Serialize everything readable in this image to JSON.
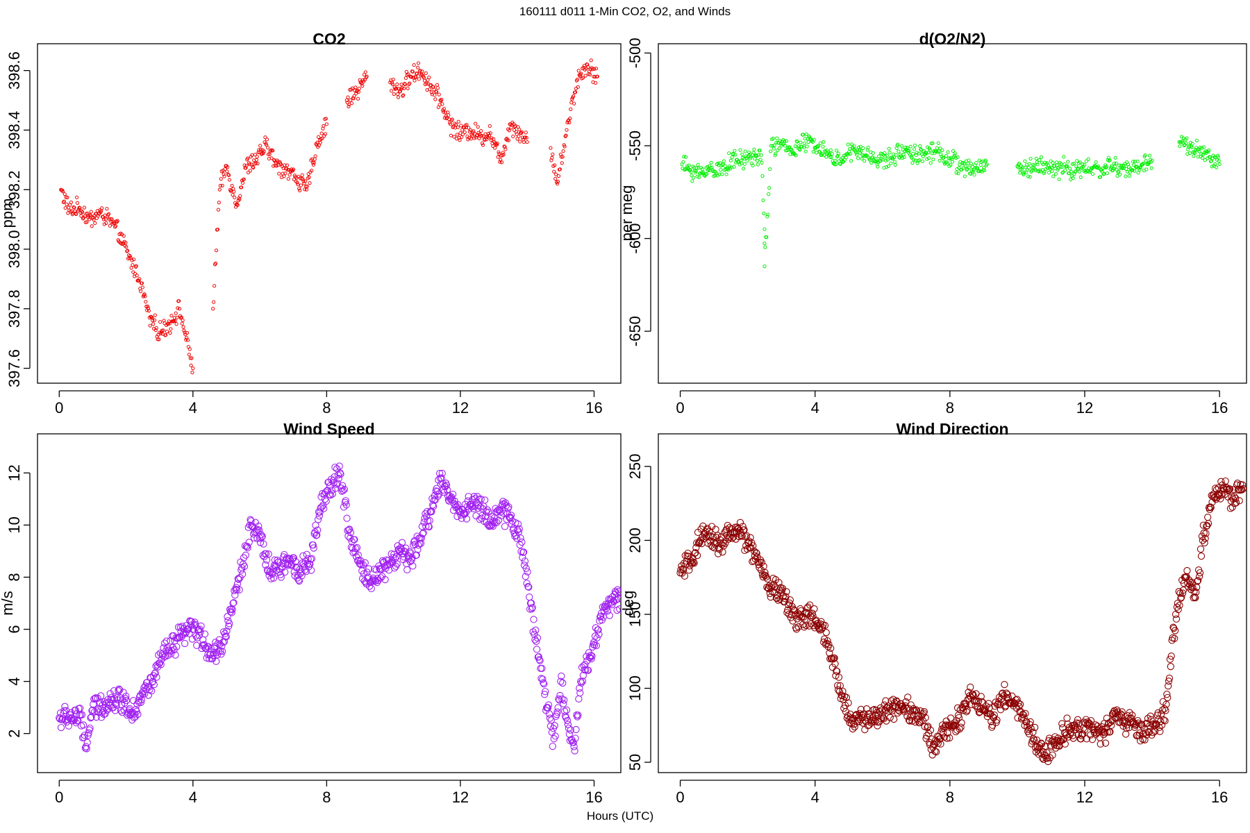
{
  "figure": {
    "title": "160111   d011   1-Min CO2, O2, and Winds",
    "xlabel": "Hours (UTC)"
  },
  "chart_data": [
    {
      "type": "scatter",
      "title": "CO2",
      "xlabel": "",
      "ylabel": "ppm",
      "xlim": [
        -0.65,
        16.8
      ],
      "ylim": [
        397.55,
        398.69
      ],
      "xticks": [
        0,
        4,
        8,
        12,
        16
      ],
      "yticks": [
        397.6,
        397.8,
        398.0,
        398.2,
        398.4,
        398.6
      ],
      "yticklabels": [
        "397.6",
        "397.8",
        "398.0",
        "398.2",
        "398.4",
        "398.6"
      ],
      "grid": false,
      "color": "#ee0000",
      "marker": "small-open-circle",
      "series": [
        {
          "x": [
            0.05,
            0.3,
            0.6,
            0.9,
            1.2,
            1.5,
            1.8,
            2.1,
            2.4,
            2.7,
            3.0,
            3.3,
            3.6,
            4.0,
            4.6,
            4.8,
            5.0,
            5.3,
            5.6,
            5.9,
            6.2,
            6.5,
            6.8,
            7.1,
            7.4,
            7.7,
            8.0,
            8.6,
            8.9,
            9.2,
            9.9,
            10.2,
            10.5,
            10.8,
            11.1,
            11.4,
            11.7,
            12.0,
            12.3,
            12.6,
            12.9,
            13.2,
            13.5,
            13.8,
            14.0,
            14.7,
            14.9,
            15.1,
            15.3,
            15.5,
            15.8,
            16.1
          ],
          "y": [
            398.2,
            398.13,
            398.14,
            398.1,
            398.12,
            398.1,
            398.05,
            397.97,
            397.9,
            397.77,
            397.72,
            397.75,
            397.8,
            397.6,
            397.8,
            398.2,
            398.28,
            398.15,
            398.28,
            398.3,
            398.35,
            398.28,
            398.27,
            398.24,
            398.2,
            398.35,
            398.42,
            398.5,
            398.53,
            398.58,
            398.56,
            398.53,
            398.58,
            398.6,
            398.55,
            398.5,
            398.42,
            398.39,
            398.4,
            398.38,
            398.39,
            398.3,
            398.42,
            398.39,
            398.36,
            398.34,
            398.22,
            398.35,
            398.47,
            398.57,
            398.62,
            398.58
          ]
        }
      ]
    },
    {
      "type": "scatter",
      "title": "d(O2/N2)",
      "xlabel": "",
      "ylabel": "per meg",
      "xlim": [
        -0.65,
        16.8
      ],
      "ylim": [
        -678,
        -495
      ],
      "xticks": [
        0,
        4,
        8,
        12,
        16
      ],
      "yticks": [
        -650,
        -600,
        -550,
        -500
      ],
      "yticklabels": [
        "-650",
        "-600",
        "-550",
        "-500"
      ],
      "grid": false,
      "color": "#00ee00",
      "marker": "small-open-circle",
      "series": [
        {
          "x": [
            0.05,
            0.3,
            0.6,
            0.9,
            1.2,
            1.5,
            1.8,
            2.1,
            2.4,
            2.5,
            2.5,
            2.7,
            3.0,
            3.3,
            3.8,
            4.1,
            4.6,
            4.9,
            5.2,
            5.5,
            5.8,
            6.1,
            6.4,
            6.7,
            7.0,
            7.3,
            7.6,
            8.0,
            8.5,
            8.8,
            9.1,
            10.0,
            10.3,
            10.6,
            10.9,
            11.2,
            11.4,
            11.6,
            11.9,
            12.2,
            12.5,
            12.8,
            13.1,
            13.4,
            13.7,
            14.0,
            14.8,
            15.1,
            15.4,
            15.7,
            16.0
          ],
          "y": [
            -560,
            -563,
            -565,
            -562,
            -563,
            -558,
            -558,
            -556,
            -555,
            -595,
            -615,
            -550,
            -550,
            -552,
            -548,
            -550,
            -558,
            -555,
            -553,
            -555,
            -557,
            -558,
            -555,
            -552,
            -555,
            -554,
            -553,
            -557,
            -563,
            -562,
            -560,
            -561,
            -563,
            -560,
            -562,
            -563,
            -560,
            -564,
            -562,
            -562,
            -563,
            -561,
            -562,
            -563,
            -560,
            -558,
            -548,
            -550,
            -553,
            -556,
            -560
          ]
        }
      ]
    },
    {
      "type": "scatter",
      "title": "Wind Speed",
      "xlabel": "",
      "ylabel": "m/s",
      "xlim": [
        -0.65,
        16.8
      ],
      "ylim": [
        0.5,
        13.5
      ],
      "xticks": [
        0,
        4,
        8,
        12,
        16
      ],
      "yticks": [
        2,
        4,
        6,
        8,
        10,
        12
      ],
      "yticklabels": [
        "2",
        "4",
        "6",
        "8",
        "10",
        "12"
      ],
      "grid": false,
      "color": "#a020f0",
      "marker": "large-open-circle",
      "series": [
        {
          "x": [
            0.0,
            0.3,
            0.6,
            0.8,
            1.0,
            1.3,
            1.6,
            1.9,
            2.2,
            2.5,
            2.8,
            3.1,
            3.4,
            3.7,
            4.0,
            4.3,
            4.6,
            4.9,
            5.2,
            5.5,
            5.7,
            6.0,
            6.3,
            6.6,
            6.9,
            7.2,
            7.5,
            7.8,
            8.1,
            8.4,
            8.7,
            9.0,
            9.3,
            9.6,
            9.9,
            10.2,
            10.5,
            10.8,
            11.1,
            11.4,
            11.7,
            12.0,
            12.3,
            12.6,
            12.9,
            13.2,
            13.5,
            13.8,
            14.1,
            14.4,
            14.6,
            14.8,
            15.0,
            15.2,
            15.4,
            15.6,
            15.9,
            16.2,
            16.5,
            16.8
          ],
          "y": [
            2.6,
            2.6,
            2.7,
            1.5,
            2.9,
            3.1,
            3.3,
            3.3,
            2.8,
            3.5,
            4.0,
            5.0,
            5.3,
            5.8,
            6.0,
            5.6,
            5.0,
            5.5,
            7.0,
            8.5,
            10.0,
            9.5,
            8.2,
            8.3,
            8.7,
            8.3,
            8.5,
            10.5,
            11.5,
            12.0,
            9.5,
            8.5,
            7.8,
            8.3,
            8.5,
            9.0,
            8.6,
            9.5,
            10.5,
            11.8,
            11.0,
            10.5,
            10.8,
            10.7,
            10.2,
            10.5,
            10.3,
            9.5,
            7.0,
            4.5,
            3.0,
            1.8,
            4.0,
            2.5,
            1.5,
            4.0,
            5.0,
            6.5,
            7.0,
            7.2
          ]
        }
      ]
    },
    {
      "type": "scatter",
      "title": "Wind Direction",
      "xlabel": "",
      "ylabel": "deg",
      "xlim": [
        -0.65,
        16.8
      ],
      "ylim": [
        43,
        272
      ],
      "xticks": [
        0,
        4,
        8,
        12,
        16
      ],
      "yticks": [
        50,
        100,
        150,
        200,
        250
      ],
      "yticklabels": [
        "50",
        "100",
        "150",
        "200",
        "250"
      ],
      "grid": false,
      "color": "#8b0000",
      "marker": "large-open-circle",
      "series": [
        {
          "x": [
            0.0,
            0.3,
            0.6,
            0.9,
            1.2,
            1.5,
            1.8,
            2.1,
            2.4,
            2.7,
            3.0,
            3.3,
            3.6,
            3.9,
            4.2,
            4.5,
            4.8,
            5.1,
            5.4,
            5.7,
            6.0,
            6.3,
            6.6,
            6.9,
            7.2,
            7.5,
            7.8,
            8.1,
            8.4,
            8.7,
            9.0,
            9.3,
            9.6,
            9.9,
            10.2,
            10.5,
            10.8,
            11.1,
            11.4,
            11.7,
            12.0,
            12.3,
            12.6,
            12.9,
            13.2,
            13.5,
            13.8,
            14.1,
            14.4,
            14.7,
            15.0,
            15.3,
            15.5,
            15.8,
            16.1,
            16.4,
            16.7
          ],
          "y": [
            178,
            185,
            200,
            203,
            198,
            205,
            205,
            195,
            180,
            168,
            165,
            150,
            148,
            148,
            140,
            120,
            95,
            78,
            80,
            80,
            82,
            88,
            88,
            85,
            78,
            60,
            70,
            75,
            85,
            95,
            85,
            80,
            95,
            90,
            80,
            65,
            55,
            62,
            70,
            75,
            72,
            72,
            70,
            80,
            78,
            75,
            70,
            75,
            85,
            150,
            175,
            165,
            200,
            230,
            235,
            228,
            235
          ]
        }
      ]
    }
  ]
}
